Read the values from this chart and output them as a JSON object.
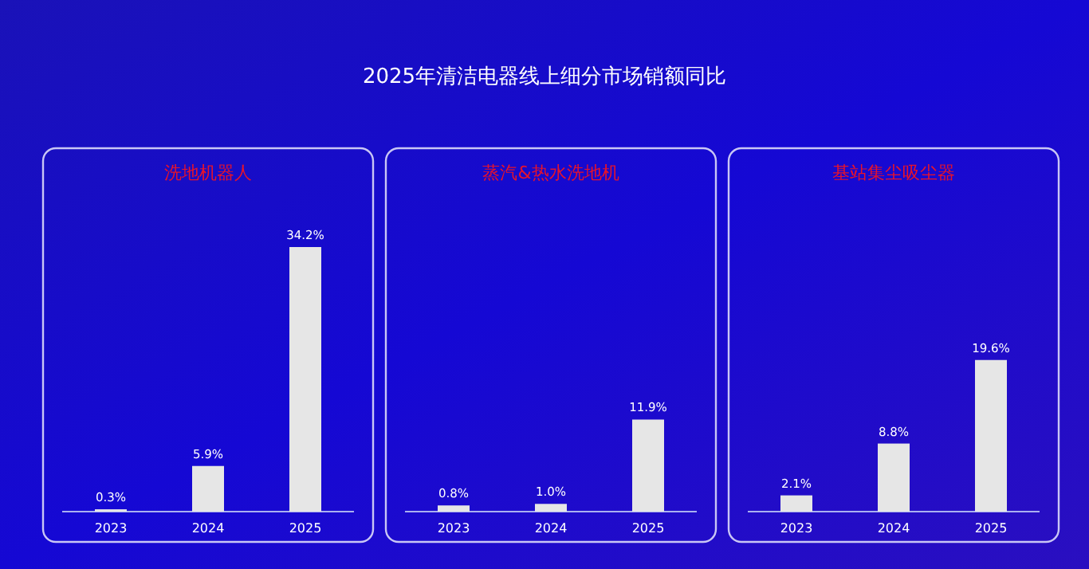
{
  "chart_data": [
    {
      "type": "bar",
      "title": "洗地机器人",
      "annotations": [
        "2025年清洁电器线上细分市场销额同比"
      ],
      "categories": [
        "2023",
        "2024",
        "2025"
      ],
      "values": [
        0.3,
        5.9,
        34.2
      ],
      "value_labels": [
        "0.3%",
        "5.9%",
        "34.2%"
      ],
      "color": "#e6e6e6"
    },
    {
      "type": "bar",
      "title": "蒸汽&热水洗地机",
      "categories": [
        "2023",
        "2024",
        "2025"
      ],
      "values": [
        0.8,
        1.0,
        11.9
      ],
      "value_labels": [
        "0.8%",
        "1.0%",
        "11.9%"
      ],
      "color": "#e6e6e6"
    },
    {
      "type": "bar",
      "title": "基站集尘吸尘器",
      "categories": [
        "2023",
        "2024",
        "2025"
      ],
      "values": [
        2.1,
        8.8,
        19.6
      ],
      "value_labels": [
        "2.1%",
        "8.8%",
        "19.6%"
      ],
      "color": "#e6e6e6"
    }
  ]
}
